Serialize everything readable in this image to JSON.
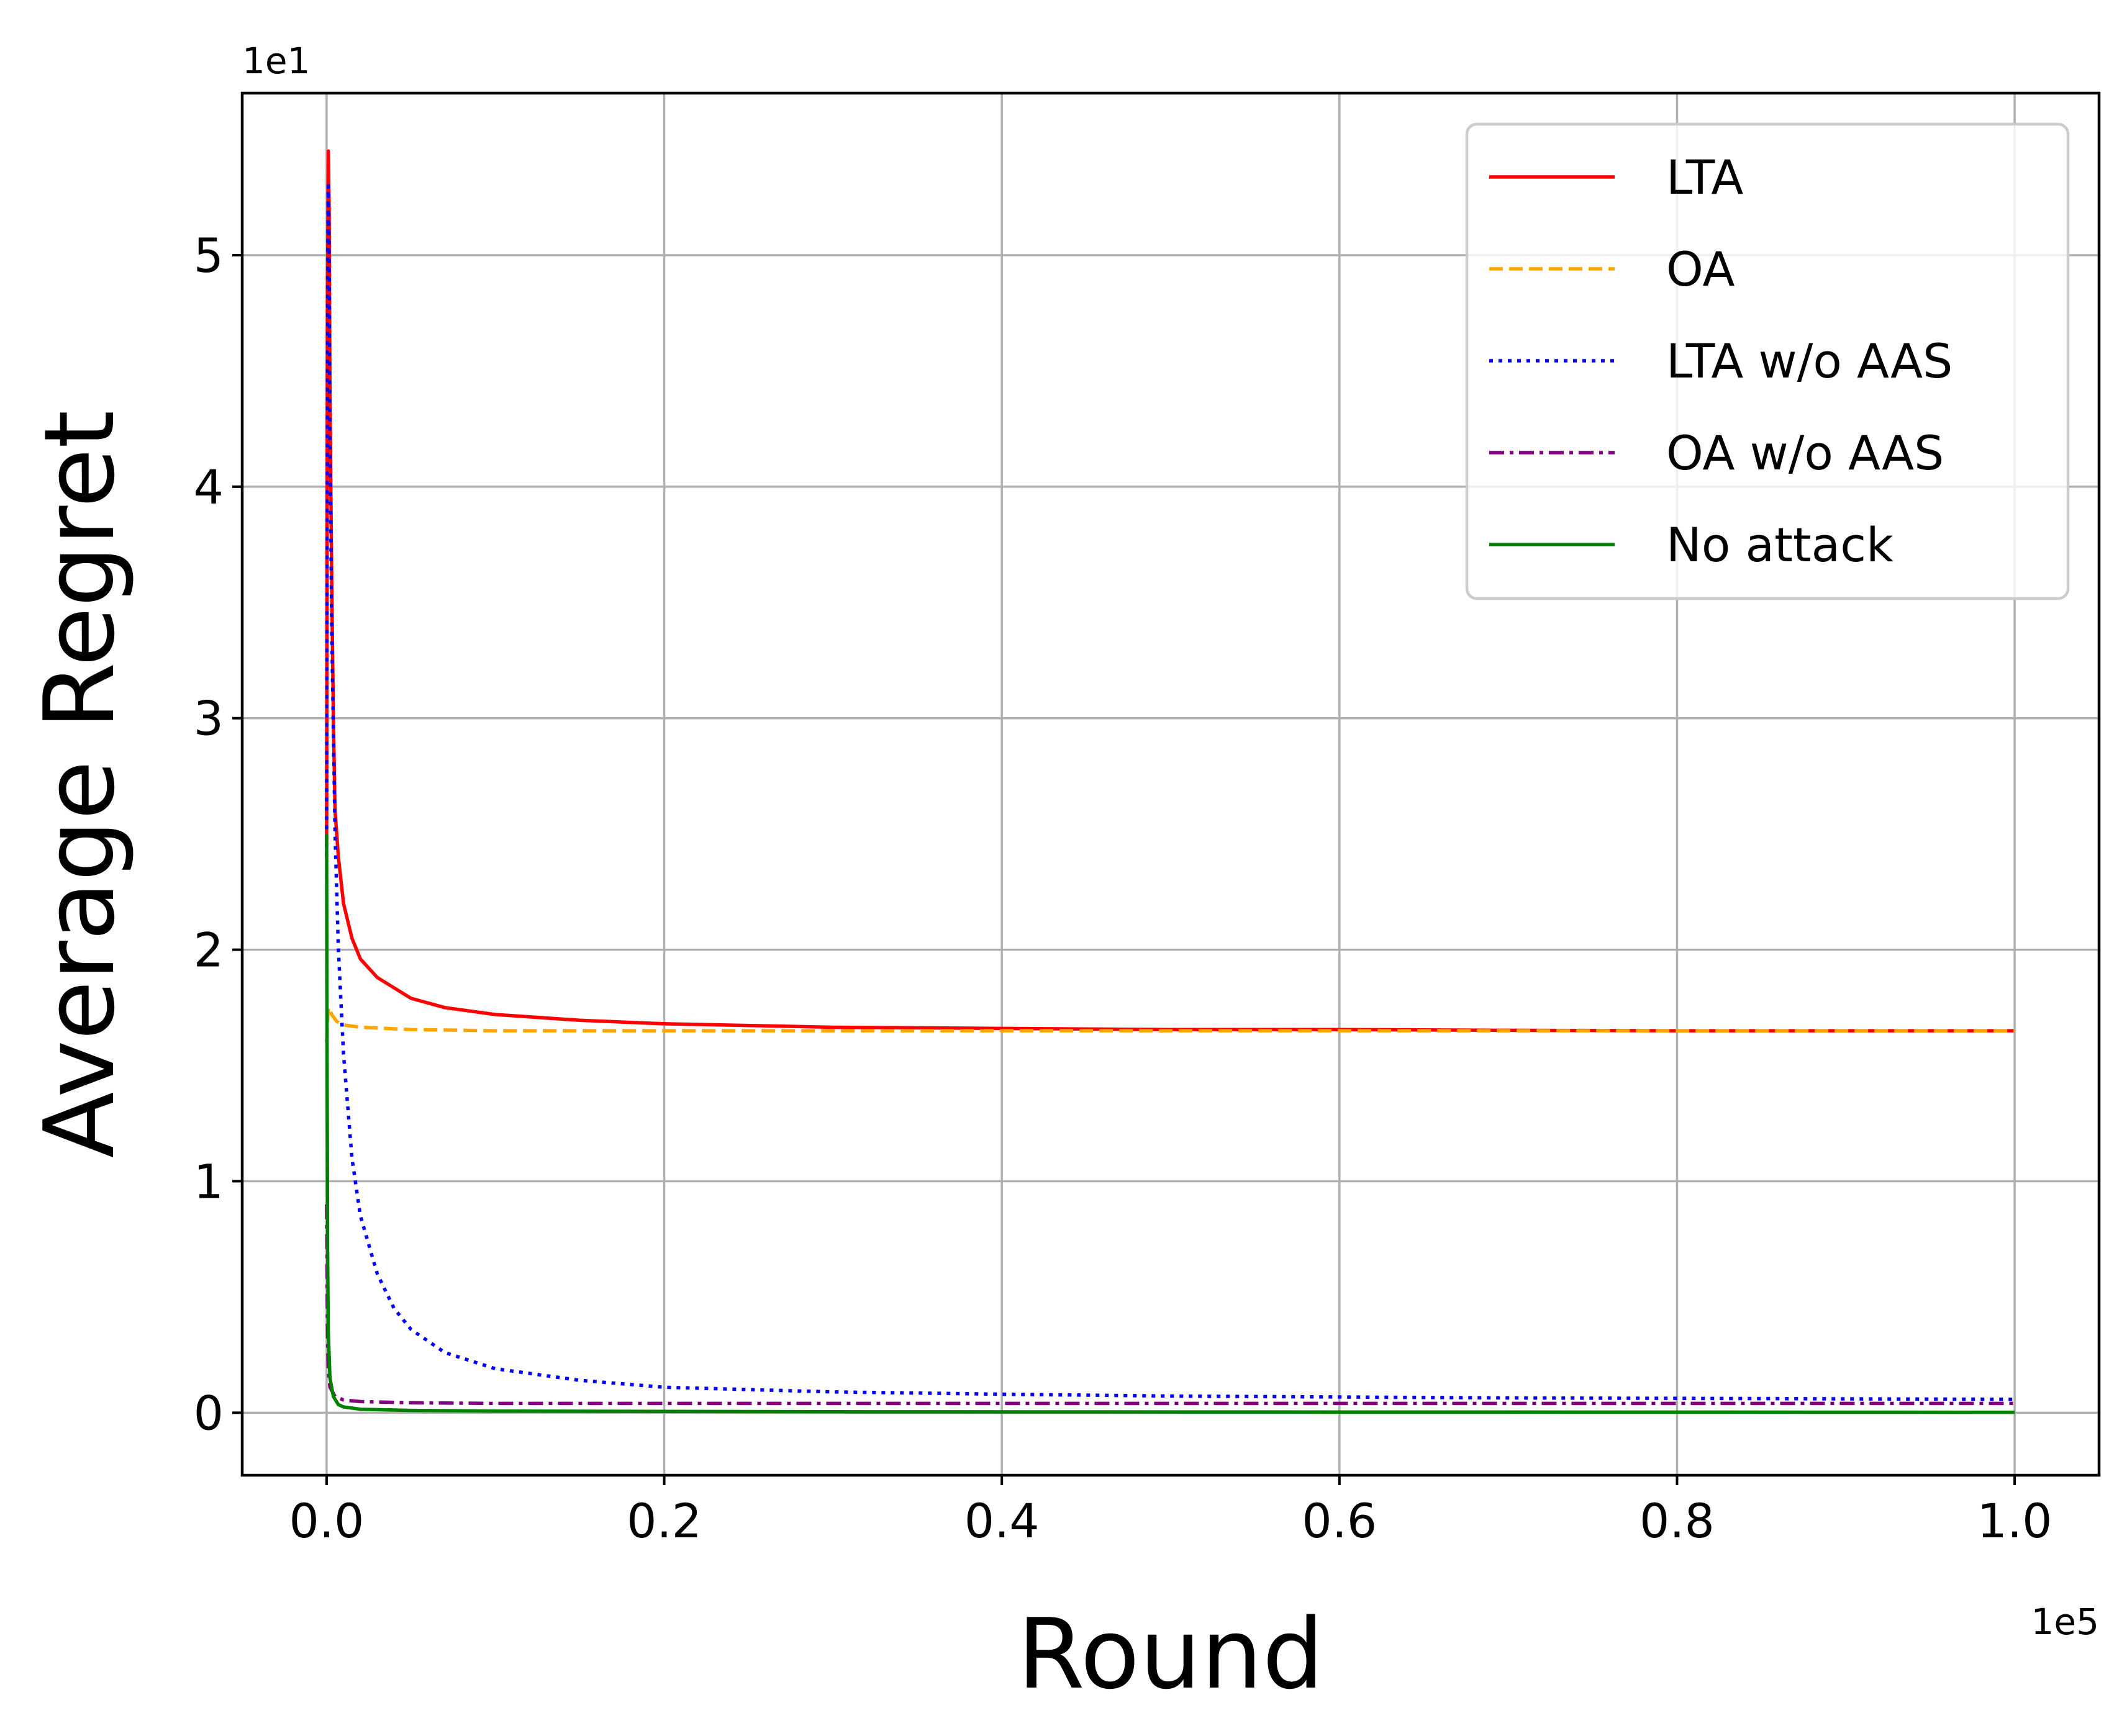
{
  "chart_data": {
    "type": "line",
    "xlabel": "Round",
    "ylabel": "Average Regret",
    "x_offset_label": "1e5",
    "y_offset_label": "1e1",
    "xlim": [
      -0.05,
      1.05
    ],
    "ylim": [
      -0.27,
      5.7
    ],
    "xticks": [
      0.0,
      0.2,
      0.4,
      0.6,
      0.8,
      1.0
    ],
    "xtick_labels": [
      "0.0",
      "0.2",
      "0.4",
      "0.6",
      "0.8",
      "1.0"
    ],
    "yticks": [
      0,
      1,
      2,
      3,
      4,
      5
    ],
    "ytick_labels": [
      "0",
      "1",
      "2",
      "3",
      "4",
      "5"
    ],
    "grid": true,
    "legend_position": "top-right",
    "series": [
      {
        "name": "LTA",
        "color": "#ff0000",
        "style": "solid",
        "points": [
          [
            0.0,
            2.45
          ],
          [
            0.0005,
            4.8
          ],
          [
            0.001,
            5.45
          ],
          [
            0.0015,
            5.2
          ],
          [
            0.002,
            4.4
          ],
          [
            0.003,
            3.6
          ],
          [
            0.004,
            3.0
          ],
          [
            0.005,
            2.6
          ],
          [
            0.007,
            2.4
          ],
          [
            0.01,
            2.2
          ],
          [
            0.015,
            2.05
          ],
          [
            0.02,
            1.96
          ],
          [
            0.03,
            1.88
          ],
          [
            0.05,
            1.79
          ],
          [
            0.07,
            1.75
          ],
          [
            0.1,
            1.72
          ],
          [
            0.15,
            1.695
          ],
          [
            0.2,
            1.68
          ],
          [
            0.3,
            1.665
          ],
          [
            0.4,
            1.66
          ],
          [
            0.5,
            1.655
          ],
          [
            0.6,
            1.655
          ],
          [
            0.7,
            1.652
          ],
          [
            0.8,
            1.65
          ],
          [
            0.9,
            1.65
          ],
          [
            1.0,
            1.65
          ]
        ]
      },
      {
        "name": "OA",
        "color": "#ffa500",
        "style": "dashed",
        "points": [
          [
            0.0,
            1.6
          ],
          [
            0.001,
            1.75
          ],
          [
            0.003,
            1.72
          ],
          [
            0.006,
            1.69
          ],
          [
            0.01,
            1.675
          ],
          [
            0.02,
            1.665
          ],
          [
            0.05,
            1.655
          ],
          [
            0.1,
            1.65
          ],
          [
            0.2,
            1.65
          ],
          [
            0.4,
            1.65
          ],
          [
            0.6,
            1.65
          ],
          [
            0.8,
            1.65
          ],
          [
            1.0,
            1.65
          ]
        ]
      },
      {
        "name": "LTA w/o AAS",
        "color": "#0000ff",
        "style": "dotted",
        "points": [
          [
            0.0,
            2.4
          ],
          [
            0.0005,
            4.6
          ],
          [
            0.001,
            5.3
          ],
          [
            0.0015,
            5.0
          ],
          [
            0.002,
            4.2
          ],
          [
            0.003,
            3.4
          ],
          [
            0.005,
            2.5
          ],
          [
            0.007,
            2.0
          ],
          [
            0.01,
            1.55
          ],
          [
            0.015,
            1.1
          ],
          [
            0.02,
            0.85
          ],
          [
            0.03,
            0.6
          ],
          [
            0.04,
            0.45
          ],
          [
            0.05,
            0.36
          ],
          [
            0.07,
            0.26
          ],
          [
            0.1,
            0.19
          ],
          [
            0.15,
            0.14
          ],
          [
            0.2,
            0.11
          ],
          [
            0.3,
            0.09
          ],
          [
            0.4,
            0.08
          ],
          [
            0.5,
            0.072
          ],
          [
            0.6,
            0.068
          ],
          [
            0.7,
            0.064
          ],
          [
            0.8,
            0.062
          ],
          [
            0.9,
            0.06
          ],
          [
            1.0,
            0.058
          ]
        ]
      },
      {
        "name": "OA w/o AAS",
        "color": "#800080",
        "style": "dashdot",
        "points": [
          [
            0.0,
            0.9
          ],
          [
            0.0005,
            0.35
          ],
          [
            0.001,
            0.18
          ],
          [
            0.002,
            0.11
          ],
          [
            0.005,
            0.07
          ],
          [
            0.01,
            0.055
          ],
          [
            0.02,
            0.048
          ],
          [
            0.05,
            0.043
          ],
          [
            0.1,
            0.04
          ],
          [
            0.2,
            0.04
          ],
          [
            0.4,
            0.04
          ],
          [
            0.6,
            0.04
          ],
          [
            0.8,
            0.04
          ],
          [
            1.0,
            0.04
          ]
        ]
      },
      {
        "name": "No attack",
        "color": "#008000",
        "style": "solid",
        "points": [
          [
            0.0,
            2.5
          ],
          [
            0.0003,
            1.5
          ],
          [
            0.0006,
            0.7
          ],
          [
            0.001,
            0.35
          ],
          [
            0.002,
            0.15
          ],
          [
            0.004,
            0.07
          ],
          [
            0.007,
            0.035
          ],
          [
            0.01,
            0.025
          ],
          [
            0.02,
            0.015
          ],
          [
            0.05,
            0.01
          ],
          [
            0.1,
            0.007
          ],
          [
            0.3,
            0.004
          ],
          [
            0.6,
            0.003
          ],
          [
            1.0,
            0.002
          ]
        ]
      }
    ]
  }
}
